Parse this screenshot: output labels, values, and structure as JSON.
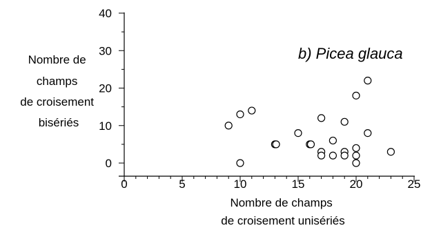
{
  "chart_data": {
    "type": "scatter",
    "title": "b) Picea glauca",
    "xlabel_lines": [
      "Nombre de champs",
      "de croisement unisériés"
    ],
    "ylabel_lines": [
      "Nombre de",
      "champs",
      "de croisement",
      "bisériés"
    ],
    "xlim": [
      0,
      25
    ],
    "ylim": [
      0,
      40
    ],
    "xticks": [
      "0",
      "5",
      "10",
      "15",
      "20",
      "25"
    ],
    "yticks": [
      "0",
      "10",
      "20",
      "30",
      "40"
    ],
    "grid": false,
    "marker": "open-circle",
    "points": [
      {
        "x": 9,
        "y": 10
      },
      {
        "x": 10,
        "y": 13
      },
      {
        "x": 10,
        "y": 0
      },
      {
        "x": 11,
        "y": 14
      },
      {
        "x": 13,
        "y": 5
      },
      {
        "x": 13.1,
        "y": 5
      },
      {
        "x": 15,
        "y": 8
      },
      {
        "x": 16,
        "y": 5
      },
      {
        "x": 16.1,
        "y": 5
      },
      {
        "x": 17,
        "y": 12
      },
      {
        "x": 17,
        "y": 3
      },
      {
        "x": 17,
        "y": 2
      },
      {
        "x": 18,
        "y": 6
      },
      {
        "x": 18,
        "y": 2
      },
      {
        "x": 19,
        "y": 11
      },
      {
        "x": 19,
        "y": 3
      },
      {
        "x": 19,
        "y": 2
      },
      {
        "x": 20,
        "y": 18
      },
      {
        "x": 20,
        "y": 4
      },
      {
        "x": 20,
        "y": 2
      },
      {
        "x": 20,
        "y": 0
      },
      {
        "x": 21,
        "y": 22
      },
      {
        "x": 21,
        "y": 8
      },
      {
        "x": 23,
        "y": 3
      }
    ]
  }
}
